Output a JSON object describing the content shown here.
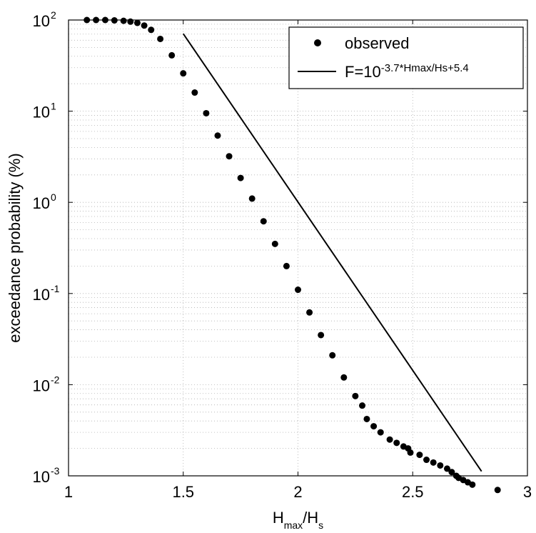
{
  "chart_data": {
    "type": "scatter",
    "xlabel": {
      "main": "H",
      "sub1": "max",
      "slash": "/H",
      "sub2": "s"
    },
    "ylabel": "exceedance probability (%)",
    "xlim": [
      1,
      3
    ],
    "ylim": [
      0.001,
      100
    ],
    "yscale": "log",
    "grid": true,
    "legend_position": "top-right",
    "x_ticks": [
      "1",
      "1.5",
      "2",
      "2.5",
      "3"
    ],
    "y_ticks": [
      {
        "base": "10",
        "exp": "-3",
        "value": 0.001
      },
      {
        "base": "10",
        "exp": "-2",
        "value": 0.01
      },
      {
        "base": "10",
        "exp": "-1",
        "value": 0.1
      },
      {
        "base": "10",
        "exp": "0",
        "value": 1
      },
      {
        "base": "10",
        "exp": "1",
        "value": 10
      },
      {
        "base": "10",
        "exp": "2",
        "value": 100
      }
    ],
    "legend": [
      {
        "marker": "dot",
        "label": "observed"
      },
      {
        "marker": "line",
        "label_prefix": "F=10",
        "label_sup": "-3.7*Hmax/Hs+5.4"
      }
    ],
    "series": [
      {
        "name": "observed",
        "style": "markers",
        "color": "#000000",
        "x": [
          1.08,
          1.12,
          1.16,
          1.2,
          1.24,
          1.27,
          1.3,
          1.33,
          1.36,
          1.4,
          1.45,
          1.5,
          1.55,
          1.6,
          1.65,
          1.7,
          1.75,
          1.8,
          1.85,
          1.9,
          1.95,
          2.0,
          2.05,
          2.1,
          2.15,
          2.2,
          2.25,
          2.28,
          2.3,
          2.33,
          2.36,
          2.4,
          2.43,
          2.46,
          2.48,
          2.49,
          2.53,
          2.56,
          2.59,
          2.62,
          2.65,
          2.67,
          2.69,
          2.7,
          2.72,
          2.74,
          2.76,
          2.87
        ],
        "y": [
          100,
          100,
          100,
          99,
          98,
          96,
          93,
          87,
          78,
          62,
          41,
          26,
          16,
          9.5,
          5.4,
          3.2,
          1.85,
          1.1,
          0.62,
          0.35,
          0.2,
          0.11,
          0.062,
          0.035,
          0.021,
          0.012,
          0.0075,
          0.0059,
          0.0042,
          0.0035,
          0.003,
          0.0025,
          0.0023,
          0.0021,
          0.002,
          0.0018,
          0.0017,
          0.0015,
          0.0014,
          0.0013,
          0.0012,
          0.0011,
          0.001,
          0.00095,
          0.0009,
          0.00085,
          0.0008,
          0.0007
        ]
      },
      {
        "name": "F=10^(-3.7*Hmax/Hs+5.4)",
        "style": "line",
        "color": "#000000",
        "x": [
          1.5,
          2.8
        ],
        "y": [
          70.8,
          0.00112
        ]
      }
    ]
  }
}
